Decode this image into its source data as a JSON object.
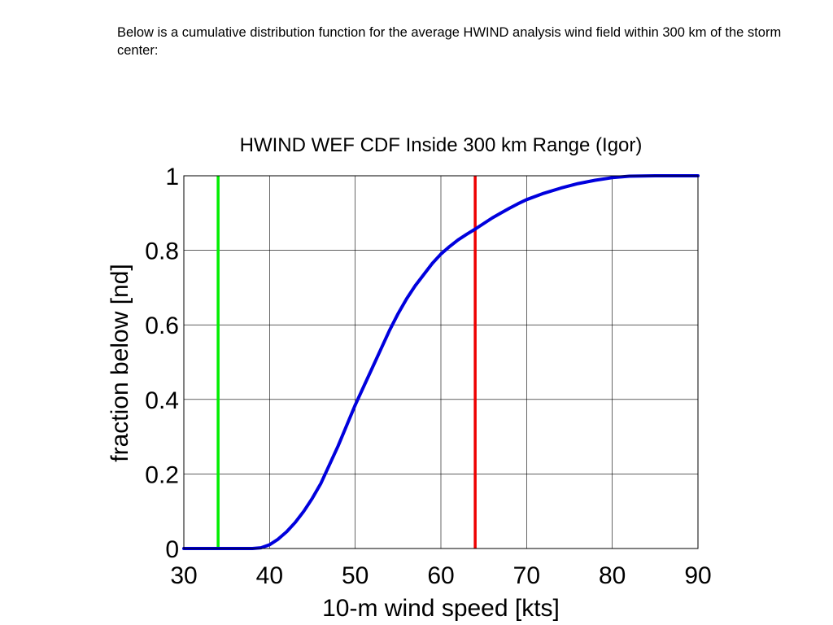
{
  "page": {
    "intro_text": "Below is a cumulative distribution function for the average HWIND analysis wind field within 300 km of the storm center:"
  },
  "chart_data": {
    "type": "line",
    "title": "HWIND WEF CDF Inside 300 km Range (Igor)",
    "xlabel": "10-m wind speed [kts]",
    "ylabel": "fraction below [nd]",
    "xlim": [
      30,
      90
    ],
    "ylim": [
      0,
      1
    ],
    "x_ticks": [
      30,
      40,
      50,
      60,
      70,
      80,
      90
    ],
    "y_ticks": [
      0,
      0.2,
      0.4,
      0.6,
      0.8,
      1
    ],
    "x_tick_labels": [
      "30",
      "40",
      "50",
      "60",
      "70",
      "80",
      "90"
    ],
    "y_tick_labels": [
      "0",
      "0.2",
      "0.4",
      "0.6",
      "0.8",
      "1"
    ],
    "grid": true,
    "series": [
      {
        "color": "#0000dd",
        "x": [
          30,
          38,
          39,
          40,
          41,
          42,
          43,
          44,
          45,
          46,
          47,
          48,
          49,
          50,
          51,
          52,
          53,
          54,
          55,
          56,
          57,
          58,
          59,
          60,
          61,
          62,
          63,
          64,
          65,
          66,
          67,
          68,
          69,
          70,
          72,
          74,
          76,
          78,
          80,
          82,
          85,
          90
        ],
        "y": [
          0.0,
          0.0,
          0.002,
          0.01,
          0.025,
          0.045,
          0.07,
          0.1,
          0.135,
          0.175,
          0.225,
          0.275,
          0.33,
          0.385,
          0.435,
          0.485,
          0.535,
          0.585,
          0.63,
          0.67,
          0.705,
          0.735,
          0.765,
          0.79,
          0.81,
          0.828,
          0.843,
          0.857,
          0.872,
          0.887,
          0.9,
          0.913,
          0.925,
          0.936,
          0.953,
          0.967,
          0.979,
          0.988,
          0.995,
          0.999,
          1.0,
          1.0
        ]
      }
    ],
    "reference_lines": [
      {
        "x": 34,
        "color": "#00ee00"
      },
      {
        "x": 64,
        "color": "#ee0000"
      }
    ]
  }
}
